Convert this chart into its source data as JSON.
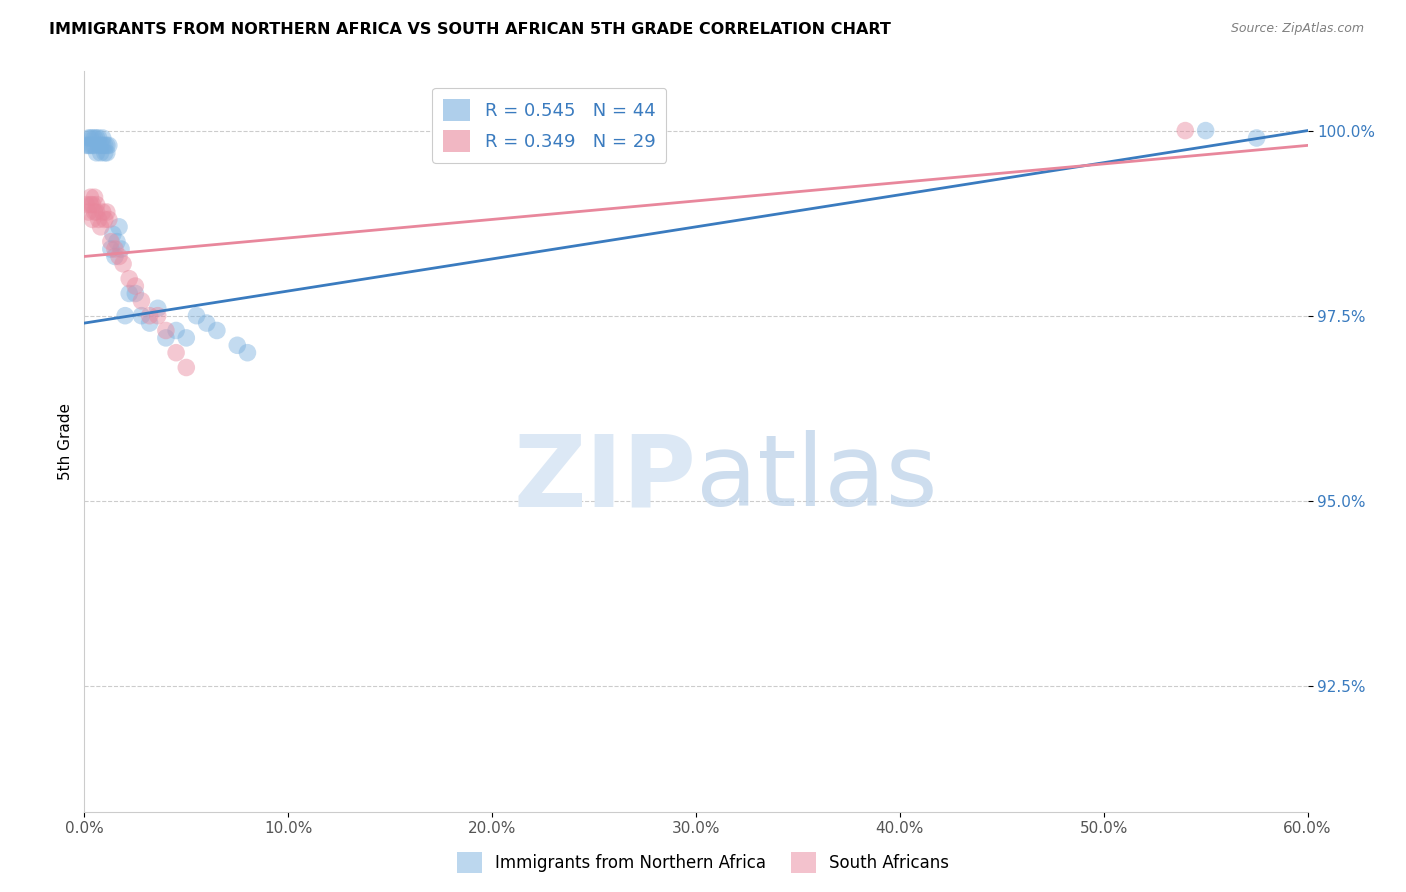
{
  "title": "IMMIGRANTS FROM NORTHERN AFRICA VS SOUTH AFRICAN 5TH GRADE CORRELATION CHART",
  "source": "Source: ZipAtlas.com",
  "xlabel_ticks": [
    "0.0%",
    "10.0%",
    "20.0%",
    "30.0%",
    "40.0%",
    "50.0%",
    "60.0%"
  ],
  "xlabel_vals": [
    0.0,
    0.1,
    0.2,
    0.3,
    0.4,
    0.5,
    0.6
  ],
  "ylabel_ticks": [
    "100.0%",
    "97.5%",
    "95.0%",
    "92.5%"
  ],
  "ylabel_vals": [
    1.0,
    0.975,
    0.95,
    0.925
  ],
  "xmin": 0.0,
  "xmax": 0.6,
  "ymin": 0.908,
  "ymax": 1.008,
  "blue_color": "#7ab0de",
  "pink_color": "#e8879c",
  "legend_blue_label": "R = 0.545   N = 44",
  "legend_pink_label": "R = 0.349   N = 29",
  "legend_text_color": "#3a7bbf",
  "blue_scatter_x": [
    0.001,
    0.002,
    0.002,
    0.003,
    0.003,
    0.004,
    0.004,
    0.005,
    0.005,
    0.006,
    0.006,
    0.007,
    0.007,
    0.008,
    0.008,
    0.009,
    0.009,
    0.01,
    0.01,
    0.011,
    0.011,
    0.012,
    0.013,
    0.014,
    0.015,
    0.016,
    0.017,
    0.018,
    0.02,
    0.022,
    0.025,
    0.028,
    0.032,
    0.036,
    0.04,
    0.045,
    0.05,
    0.055,
    0.06,
    0.065,
    0.075,
    0.08,
    0.55,
    0.575
  ],
  "blue_scatter_y": [
    0.998,
    0.998,
    0.999,
    0.999,
    0.998,
    0.999,
    0.998,
    0.999,
    0.998,
    0.999,
    0.997,
    0.998,
    0.999,
    0.998,
    0.997,
    0.998,
    0.999,
    0.997,
    0.998,
    0.998,
    0.997,
    0.998,
    0.984,
    0.986,
    0.983,
    0.985,
    0.987,
    0.984,
    0.975,
    0.978,
    0.978,
    0.975,
    0.974,
    0.976,
    0.972,
    0.973,
    0.972,
    0.975,
    0.974,
    0.973,
    0.971,
    0.97,
    1.0,
    0.999
  ],
  "pink_scatter_x": [
    0.001,
    0.002,
    0.003,
    0.003,
    0.004,
    0.004,
    0.005,
    0.005,
    0.006,
    0.006,
    0.007,
    0.008,
    0.009,
    0.01,
    0.011,
    0.012,
    0.013,
    0.015,
    0.017,
    0.019,
    0.022,
    0.025,
    0.028,
    0.032,
    0.036,
    0.04,
    0.045,
    0.05,
    0.54
  ],
  "pink_scatter_y": [
    0.99,
    0.989,
    0.99,
    0.991,
    0.988,
    0.99,
    0.989,
    0.991,
    0.989,
    0.99,
    0.988,
    0.987,
    0.989,
    0.988,
    0.989,
    0.988,
    0.985,
    0.984,
    0.983,
    0.982,
    0.98,
    0.979,
    0.977,
    0.975,
    0.975,
    0.973,
    0.97,
    0.968,
    1.0
  ],
  "blue_line_x": [
    0.0,
    0.6
  ],
  "blue_line_y": [
    0.974,
    1.0
  ],
  "pink_line_x": [
    0.0,
    0.6
  ],
  "pink_line_y": [
    0.983,
    0.998
  ],
  "watermark_zip": "ZIP",
  "watermark_atlas": "atlas",
  "watermark_color": "#dce8f5",
  "grid_color": "#cccccc",
  "ylabel_color": "#3a7bbf",
  "background_color": "#ffffff",
  "bottom_legend_blue": "Immigrants from Northern Africa",
  "bottom_legend_pink": "South Africans"
}
